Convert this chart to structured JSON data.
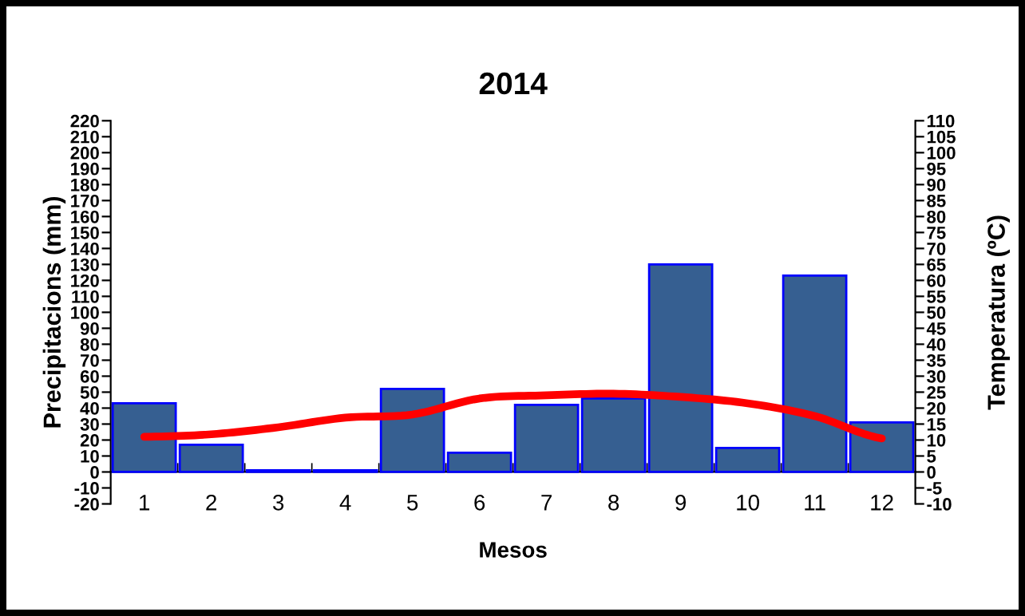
{
  "chart_data": {
    "type": "bar",
    "title": "2014",
    "xlabel": "Mesos",
    "ylabel": "Precipitacions (mm)",
    "y2label": "Temperatura (ºC)",
    "categories": [
      "1",
      "2",
      "3",
      "4",
      "5",
      "6",
      "7",
      "8",
      "9",
      "10",
      "11",
      "12"
    ],
    "series": [
      {
        "color": "#365f91",
        "values": [
          43,
          17,
          1,
          1,
          52,
          12,
          42,
          46,
          130,
          15,
          123,
          31
        ]
      },
      {
        "type": "line",
        "axis": "y2",
        "color": "#ff0000",
        "values": [
          11,
          11.8,
          14,
          17,
          18,
          23,
          24,
          24.5,
          23.5,
          21.5,
          17.5,
          10.5
        ]
      }
    ],
    "ylim": [
      -20,
      220
    ],
    "yticks": [
      -20,
      -10,
      0,
      10,
      20,
      30,
      40,
      50,
      60,
      70,
      80,
      90,
      100,
      110,
      120,
      130,
      140,
      150,
      160,
      170,
      180,
      190,
      200,
      210,
      220
    ],
    "y2lim": [
      -10,
      110
    ],
    "y2ticks": [
      -10,
      -5,
      0,
      5,
      10,
      15,
      20,
      25,
      30,
      35,
      40,
      45,
      50,
      55,
      60,
      65,
      70,
      75,
      80,
      85,
      90,
      95,
      100,
      105,
      110
    ],
    "grid": false,
    "legend": false
  }
}
